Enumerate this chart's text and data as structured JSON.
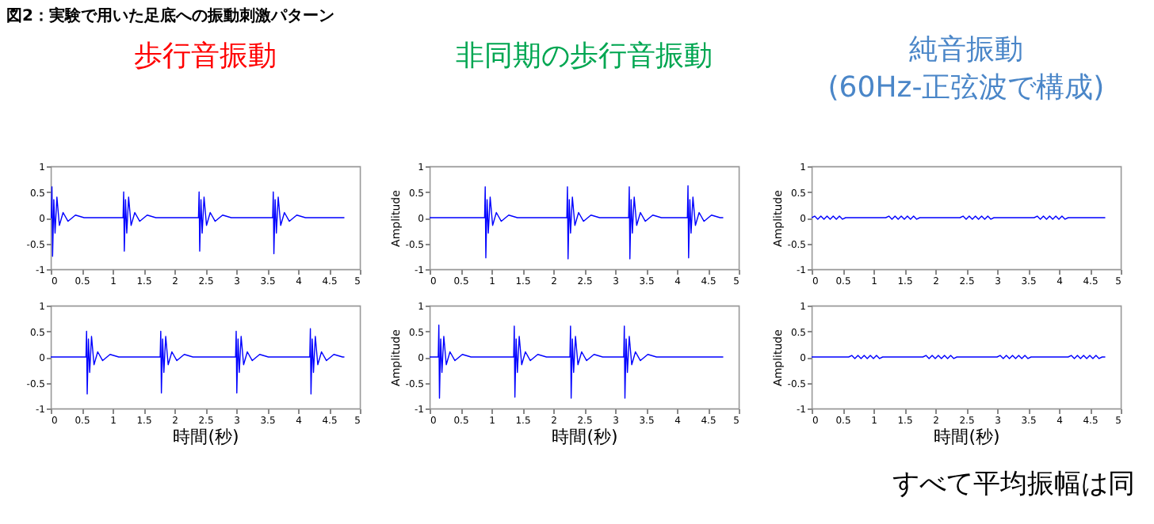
{
  "chart_data": [
    {
      "type": "line",
      "title": "歩行音振動",
      "annotations": [
        "図2：実験で用いた足底への振動刺激パターン"
      ],
      "xlim": [
        0,
        5
      ],
      "xticks": [
        0,
        0.5,
        1,
        1.5,
        2,
        2.5,
        3,
        3.5,
        4,
        4.5,
        5
      ],
      "ylim": [
        -1,
        1
      ],
      "yticks": [
        -1,
        -0.5,
        0,
        0.5,
        1
      ],
      "x": [
        0,
        0.01,
        0.02,
        0.03,
        0.05,
        0.07,
        0.1,
        0.14,
        0.2,
        0.28,
        0.4,
        0.54,
        1.17,
        1.18,
        1.19,
        1.21,
        1.23,
        1.26,
        1.3,
        1.36,
        1.44,
        1.56,
        1.7,
        2.39,
        2.4,
        2.41,
        2.43,
        2.45,
        2.48,
        2.52,
        2.58,
        2.66,
        2.78,
        2.92,
        3.59,
        3.6,
        3.61,
        3.63,
        3.65,
        3.68,
        3.72,
        3.78,
        3.86,
        3.98,
        4.12,
        4.75
      ],
      "series": [
        {
          "color": "#0000ff",
          "values": [
            0,
            0,
            0.6,
            -0.75,
            0.35,
            -0.3,
            0.4,
            -0.15,
            0.1,
            -0.07,
            0.05,
            0,
            0,
            0.5,
            -0.65,
            0.35,
            -0.3,
            0.4,
            -0.15,
            0.1,
            -0.07,
            0.05,
            0,
            0,
            0.5,
            -0.65,
            0.35,
            -0.3,
            0.4,
            -0.15,
            0.1,
            -0.07,
            0.05,
            0,
            0,
            0.5,
            -0.7,
            0.35,
            -0.3,
            0.4,
            -0.15,
            0.1,
            -0.07,
            0.05,
            0,
            0
          ]
        }
      ]
    },
    {
      "type": "line",
      "title": "非同期の歩行音振動",
      "ylabel": "Amplitude",
      "xlim": [
        0,
        5
      ],
      "xticks": [
        0,
        0.5,
        1,
        1.5,
        2,
        2.5,
        3,
        3.5,
        4,
        4.5,
        5
      ],
      "ylim": [
        -1,
        1
      ],
      "yticks": [
        -1,
        -0.5,
        0,
        0.5,
        1
      ],
      "x": [
        0,
        0.89,
        0.9,
        0.91,
        0.93,
        0.95,
        0.98,
        1.02,
        1.08,
        1.16,
        1.28,
        1.42,
        2.22,
        2.23,
        2.24,
        2.26,
        2.28,
        2.31,
        2.35,
        2.41,
        2.49,
        2.61,
        2.75,
        3.22,
        3.23,
        3.24,
        3.26,
        3.28,
        3.31,
        3.35,
        3.41,
        3.49,
        3.61,
        3.75,
        4.17,
        4.18,
        4.19,
        4.21,
        4.23,
        4.26,
        4.3,
        4.36,
        4.44,
        4.56,
        4.7,
        4.75
      ],
      "series": [
        {
          "color": "#0000ff",
          "values": [
            0,
            0,
            0.6,
            -0.78,
            0.35,
            -0.3,
            0.4,
            -0.15,
            0.1,
            -0.07,
            0.05,
            0,
            0,
            0.6,
            -0.8,
            0.35,
            -0.3,
            0.4,
            -0.15,
            0.1,
            -0.07,
            0.05,
            0,
            0,
            0.6,
            -0.8,
            0.35,
            -0.3,
            0.4,
            -0.15,
            0.1,
            -0.07,
            0.05,
            0,
            0,
            0.62,
            -0.78,
            0.35,
            -0.3,
            0.4,
            -0.15,
            0.1,
            -0.07,
            0.05,
            0,
            0
          ]
        }
      ]
    },
    {
      "type": "line",
      "title": "純音振動\n(60Hz-正弦波で構成)",
      "ylabel": "Amplitude",
      "xlim": [
        0,
        5
      ],
      "xticks": [
        0,
        0.5,
        1,
        1.5,
        2,
        2.5,
        3,
        3.5,
        4,
        4.5,
        5
      ],
      "ylim": [
        -1,
        1
      ],
      "yticks": [
        -1,
        -0.5,
        0,
        0.5,
        1
      ],
      "x": [
        0,
        0.05,
        0.1,
        0.15,
        0.2,
        0.25,
        0.3,
        0.35,
        0.4,
        0.45,
        0.5,
        0.55,
        1.2,
        1.25,
        1.3,
        1.35,
        1.4,
        1.45,
        1.5,
        1.55,
        1.6,
        1.65,
        1.7,
        1.75,
        2.4,
        2.45,
        2.5,
        2.55,
        2.6,
        2.65,
        2.7,
        2.75,
        2.8,
        2.85,
        2.9,
        2.95,
        3.6,
        3.65,
        3.7,
        3.75,
        3.8,
        3.85,
        3.9,
        3.95,
        4,
        4.05,
        4.1,
        4.15,
        4.75
      ],
      "series": [
        {
          "color": "#0000ff",
          "values": [
            0,
            0.03,
            -0.03,
            0.03,
            -0.03,
            0.03,
            -0.03,
            0.03,
            -0.03,
            0.03,
            -0.03,
            0,
            0,
            0.03,
            -0.03,
            0.03,
            -0.03,
            0.03,
            -0.03,
            0.03,
            -0.03,
            0.03,
            -0.03,
            0,
            0,
            0.03,
            -0.03,
            0.03,
            -0.03,
            0.03,
            -0.03,
            0.03,
            -0.03,
            0.03,
            -0.03,
            0,
            0,
            0.03,
            -0.03,
            0.03,
            -0.03,
            0.03,
            -0.03,
            0.03,
            -0.03,
            0.03,
            -0.03,
            0,
            0
          ]
        }
      ]
    },
    {
      "type": "line",
      "xlabel": "時間(秒)",
      "xlim": [
        0,
        5
      ],
      "xticks": [
        0,
        0.5,
        1,
        1.5,
        2,
        2.5,
        3,
        3.5,
        4,
        4.5,
        5
      ],
      "ylim": [
        -1,
        1
      ],
      "yticks": [
        -1,
        -0.5,
        0,
        0.5,
        1
      ],
      "x": [
        0,
        0.57,
        0.58,
        0.59,
        0.61,
        0.63,
        0.66,
        0.7,
        0.76,
        0.84,
        0.96,
        1.1,
        1.77,
        1.78,
        1.79,
        1.81,
        1.83,
        1.86,
        1.9,
        1.96,
        2.04,
        2.16,
        2.3,
        2.99,
        3,
        3.01,
        3.03,
        3.05,
        3.08,
        3.12,
        3.18,
        3.26,
        3.38,
        3.52,
        4.19,
        4.2,
        4.21,
        4.23,
        4.25,
        4.28,
        4.32,
        4.38,
        4.46,
        4.58,
        4.72,
        4.75
      ],
      "series": [
        {
          "color": "#0000ff",
          "values": [
            0,
            0,
            0.5,
            -0.72,
            0.35,
            -0.3,
            0.4,
            -0.15,
            0.1,
            -0.07,
            0.05,
            0,
            0,
            0.5,
            -0.7,
            0.35,
            -0.3,
            0.4,
            -0.15,
            0.1,
            -0.07,
            0.05,
            0,
            0,
            0.5,
            -0.7,
            0.35,
            -0.3,
            0.4,
            -0.15,
            0.1,
            -0.07,
            0.05,
            0,
            0,
            0.55,
            -0.72,
            0.35,
            -0.3,
            0.4,
            -0.15,
            0.1,
            -0.07,
            0.05,
            0,
            0
          ]
        }
      ]
    },
    {
      "type": "line",
      "xlabel": "時間(秒)",
      "ylabel": "Amplitude",
      "xlim": [
        0,
        5
      ],
      "xticks": [
        0,
        0.5,
        1,
        1.5,
        2,
        2.5,
        3,
        3.5,
        4,
        4.5,
        5
      ],
      "ylim": [
        -1,
        1
      ],
      "yticks": [
        -1,
        -0.5,
        0,
        0.5,
        1
      ],
      "x": [
        0,
        0.14,
        0.15,
        0.16,
        0.18,
        0.2,
        0.23,
        0.27,
        0.33,
        0.41,
        0.53,
        0.67,
        1.36,
        1.37,
        1.38,
        1.4,
        1.42,
        1.45,
        1.49,
        1.55,
        1.63,
        1.75,
        1.89,
        2.27,
        2.28,
        2.29,
        2.31,
        2.33,
        2.36,
        2.4,
        2.46,
        2.54,
        2.66,
        2.8,
        3.14,
        3.15,
        3.16,
        3.18,
        3.2,
        3.23,
        3.27,
        3.33,
        3.41,
        3.53,
        3.67,
        4.75
      ],
      "series": [
        {
          "color": "#0000ff",
          "values": [
            0,
            0,
            0.62,
            -0.8,
            0.35,
            -0.3,
            0.4,
            -0.15,
            0.1,
            -0.07,
            0.05,
            0,
            0,
            0.6,
            -0.78,
            0.35,
            -0.3,
            0.4,
            -0.15,
            0.1,
            -0.07,
            0.05,
            0,
            0,
            0.6,
            -0.8,
            0.35,
            -0.3,
            0.4,
            -0.15,
            0.1,
            -0.07,
            0.05,
            0,
            0,
            0.6,
            -0.8,
            0.35,
            -0.3,
            0.4,
            -0.15,
            0.1,
            -0.07,
            0.05,
            0,
            0
          ]
        }
      ]
    },
    {
      "type": "line",
      "xlabel": "時間(秒)",
      "ylabel": "Amplitude",
      "annotations": [
        "すべて平均振幅は同"
      ],
      "xlim": [
        0,
        5
      ],
      "xticks": [
        0,
        0.5,
        1,
        1.5,
        2,
        2.5,
        3,
        3.5,
        4,
        4.5,
        5
      ],
      "ylim": [
        -1,
        1
      ],
      "yticks": [
        -1,
        -0.5,
        0,
        0.5,
        1
      ],
      "x": [
        0,
        0.6,
        0.65,
        0.7,
        0.75,
        0.8,
        0.85,
        0.9,
        0.95,
        1,
        1.05,
        1.1,
        1.15,
        1.8,
        1.85,
        1.9,
        1.95,
        2,
        2.05,
        2.1,
        2.15,
        2.2,
        2.25,
        2.3,
        2.35,
        3,
        3.05,
        3.1,
        3.15,
        3.2,
        3.25,
        3.3,
        3.35,
        3.4,
        3.45,
        3.5,
        3.55,
        4.15,
        4.2,
        4.25,
        4.3,
        4.35,
        4.4,
        4.45,
        4.5,
        4.55,
        4.6,
        4.65,
        4.7,
        4.75
      ],
      "series": [
        {
          "color": "#0000ff",
          "values": [
            0,
            0,
            0.03,
            -0.03,
            0.03,
            -0.03,
            0.03,
            -0.03,
            0.03,
            -0.03,
            0.03,
            -0.03,
            0,
            0,
            0.03,
            -0.03,
            0.03,
            -0.03,
            0.03,
            -0.03,
            0.03,
            -0.03,
            0.03,
            -0.03,
            0,
            0,
            0.03,
            -0.03,
            0.03,
            -0.03,
            0.03,
            -0.03,
            0.03,
            -0.03,
            0.03,
            -0.03,
            0,
            0,
            0.03,
            -0.03,
            0.03,
            -0.03,
            0.03,
            -0.03,
            0.03,
            -0.03,
            0.03,
            -0.03,
            0,
            0
          ]
        }
      ]
    }
  ]
}
